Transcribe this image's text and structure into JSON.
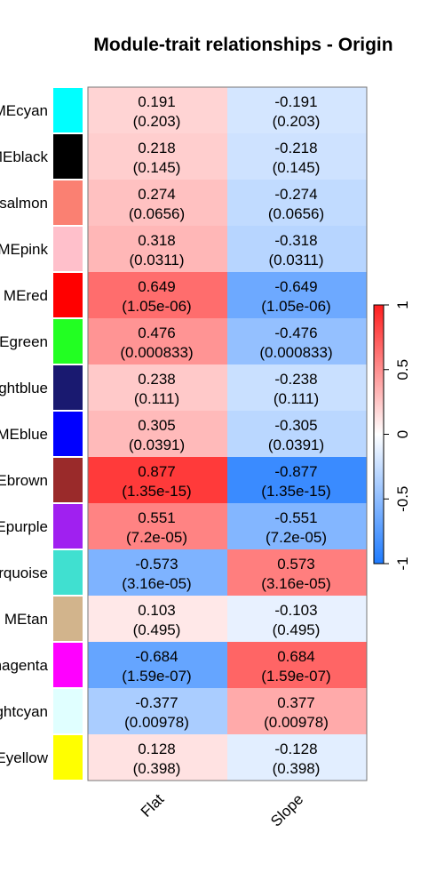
{
  "chart_data": {
    "type": "heatmap",
    "title": "Module-trait relationships - Origin",
    "columns": [
      "Flat",
      "Slope"
    ],
    "rows": [
      {
        "label": "MEcyan",
        "swatch": "#00FFFF",
        "values": [
          0.191,
          -0.191
        ],
        "pvalues": [
          "(0.203)",
          "(0.203)"
        ],
        "texts": [
          "0.191",
          "-0.191"
        ]
      },
      {
        "label": "MEblack",
        "swatch": "#000000",
        "values": [
          0.218,
          -0.218
        ],
        "pvalues": [
          "(0.145)",
          "(0.145)"
        ],
        "texts": [
          "0.218",
          "-0.218"
        ]
      },
      {
        "label": "MEsalmon",
        "swatch": "#FA8072",
        "values": [
          0.274,
          -0.274
        ],
        "pvalues": [
          "(0.0656)",
          "(0.0656)"
        ],
        "texts": [
          "0.274",
          "-0.274"
        ]
      },
      {
        "label": "MEpink",
        "swatch": "#FFC0CB",
        "values": [
          0.318,
          -0.318
        ],
        "pvalues": [
          "(0.0311)",
          "(0.0311)"
        ],
        "texts": [
          "0.318",
          "-0.318"
        ]
      },
      {
        "label": "MEred",
        "swatch": "#FF0000",
        "values": [
          0.649,
          -0.649
        ],
        "pvalues": [
          "(1.05e-06)",
          "(1.05e-06)"
        ],
        "texts": [
          "0.649",
          "-0.649"
        ]
      },
      {
        "label": "MEgreen",
        "swatch": "#22FF22",
        "values": [
          0.476,
          -0.476
        ],
        "pvalues": [
          "(0.000833)",
          "(0.000833)"
        ],
        "texts": [
          "0.476",
          "-0.476"
        ]
      },
      {
        "label": "MEmidnightblue",
        "swatch": "#191970",
        "values": [
          0.238,
          -0.238
        ],
        "pvalues": [
          "(0.111)",
          "(0.111)"
        ],
        "texts": [
          "0.238",
          "-0.238"
        ]
      },
      {
        "label": "MEblue",
        "swatch": "#0000FF",
        "values": [
          0.305,
          -0.305
        ],
        "pvalues": [
          "(0.0391)",
          "(0.0391)"
        ],
        "texts": [
          "0.305",
          "-0.305"
        ]
      },
      {
        "label": "MEbrown",
        "swatch": "#9A2A2A",
        "values": [
          0.877,
          -0.877
        ],
        "pvalues": [
          "(1.35e-15)",
          "(1.35e-15)"
        ],
        "texts": [
          "0.877",
          "-0.877"
        ]
      },
      {
        "label": "MEpurple",
        "swatch": "#A020F0",
        "values": [
          0.551,
          -0.551
        ],
        "pvalues": [
          "(7.2e-05)",
          "(7.2e-05)"
        ],
        "texts": [
          "0.551",
          "-0.551"
        ]
      },
      {
        "label": "MEturquoise",
        "swatch": "#40E0D0",
        "values": [
          -0.573,
          0.573
        ],
        "pvalues": [
          "(3.16e-05)",
          "(3.16e-05)"
        ],
        "texts": [
          "-0.573",
          "0.573"
        ]
      },
      {
        "label": "MEtan",
        "swatch": "#D2B48C",
        "values": [
          0.103,
          -0.103
        ],
        "pvalues": [
          "(0.495)",
          "(0.495)"
        ],
        "texts": [
          "0.103",
          "-0.103"
        ]
      },
      {
        "label": "MEmagenta",
        "swatch": "#FF00FF",
        "values": [
          -0.684,
          0.684
        ],
        "pvalues": [
          "(1.59e-07)",
          "(1.59e-07)"
        ],
        "texts": [
          "-0.684",
          "0.684"
        ]
      },
      {
        "label": "MElightcyan",
        "swatch": "#E0FFFF",
        "values": [
          -0.377,
          0.377
        ],
        "pvalues": [
          "(0.00978)",
          "(0.00978)"
        ],
        "texts": [
          "-0.377",
          "0.377"
        ]
      },
      {
        "label": "MEyellow",
        "swatch": "#FFFF00",
        "values": [
          0.128,
          -0.128
        ],
        "pvalues": [
          "(0.398)",
          "(0.398)"
        ],
        "texts": [
          "0.128",
          "-0.128"
        ]
      }
    ],
    "color_scale": {
      "min": -1,
      "max": 1,
      "low": "#1E7BFF",
      "mid": "#FFFFFF",
      "high": "#FF1E1E"
    },
    "legend": {
      "ticks": [
        -1,
        -0.5,
        0,
        0.5,
        1
      ],
      "tick_labels": [
        "-1",
        "-0.5",
        "0",
        "0.5",
        "1"
      ],
      "placement": "right"
    }
  }
}
